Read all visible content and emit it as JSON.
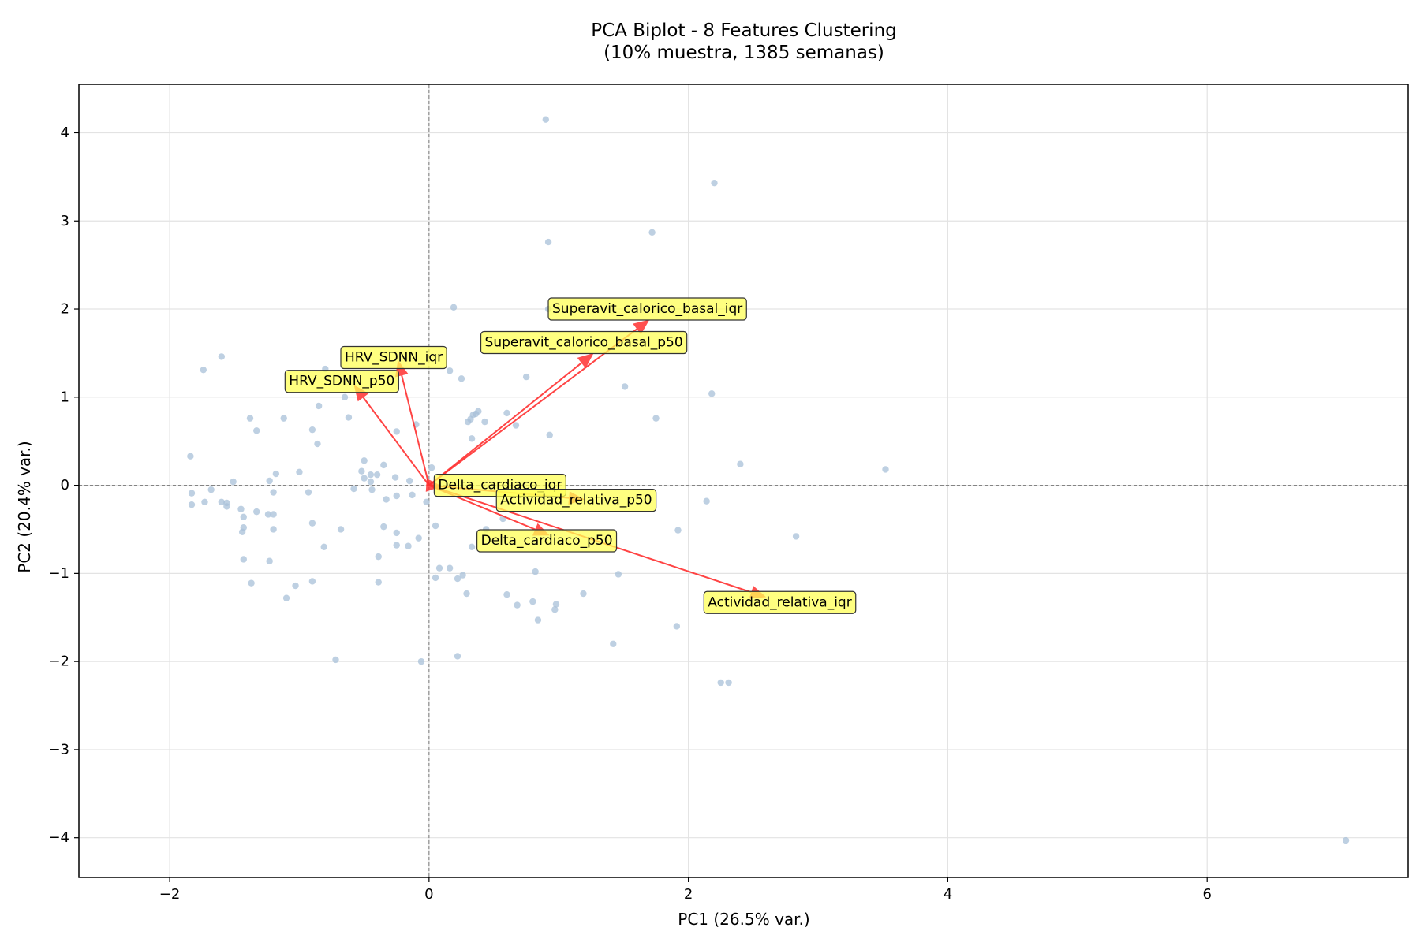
{
  "chart_data": {
    "type": "scatter",
    "title": "PCA Biplot - 8 Features Clustering",
    "subtitle": "(10% muestra, 1385 semanas)",
    "xlabel": "PC1 (26.5% var.)",
    "ylabel": "PC2 (20.4% var.)",
    "xlim": [
      -2.7,
      7.55
    ],
    "ylim": [
      -4.45,
      4.55
    ],
    "x_ticks": [
      -2,
      0,
      2,
      4,
      6
    ],
    "y_ticks": [
      -4,
      -3,
      -2,
      -1,
      0,
      1,
      2,
      3,
      4
    ],
    "x_tick_labels": [
      "−2",
      "0",
      "2",
      "4",
      "6"
    ],
    "y_tick_labels": [
      "−4",
      "−3",
      "−2",
      "−1",
      "0",
      "1",
      "2",
      "3",
      "4"
    ],
    "grid": true,
    "reference_lines": {
      "x": 0,
      "y": 0,
      "style": "dashed"
    },
    "point_color": "#a8c0d8",
    "arrow_color": "#ff3030",
    "label_bg_color": "#ffff55",
    "points": [
      [
        0.9,
        4.15
      ],
      [
        2.2,
        3.43
      ],
      [
        0.92,
        2.76
      ],
      [
        1.72,
        2.87
      ],
      [
        0.19,
        2.02
      ],
      [
        0.92,
        2.0
      ],
      [
        0.16,
        1.3
      ],
      [
        0.25,
        1.21
      ],
      [
        1.51,
        1.12
      ],
      [
        0.75,
        1.23
      ],
      [
        2.18,
        1.04
      ],
      [
        -1.74,
        1.31
      ],
      [
        -1.6,
        1.46
      ],
      [
        -0.8,
        1.32
      ],
      [
        -0.65,
        1.0
      ],
      [
        -0.85,
        0.9
      ],
      [
        -0.62,
        0.77
      ],
      [
        -1.38,
        0.76
      ],
      [
        -1.12,
        0.76
      ],
      [
        -1.33,
        0.62
      ],
      [
        -0.9,
        0.63
      ],
      [
        -0.86,
        0.47
      ],
      [
        -0.25,
        0.61
      ],
      [
        -0.1,
        0.69
      ],
      [
        0.3,
        0.72
      ],
      [
        0.32,
        0.75
      ],
      [
        0.34,
        0.8
      ],
      [
        0.36,
        0.81
      ],
      [
        0.38,
        0.84
      ],
      [
        0.43,
        0.72
      ],
      [
        0.6,
        0.82
      ],
      [
        0.67,
        0.68
      ],
      [
        0.93,
        0.57
      ],
      [
        1.75,
        0.76
      ],
      [
        0.33,
        0.53
      ],
      [
        2.4,
        0.24
      ],
      [
        3.52,
        0.18
      ],
      [
        -1.84,
        0.33
      ],
      [
        -1.0,
        0.15
      ],
      [
        -1.18,
        0.13
      ],
      [
        -0.5,
        0.28
      ],
      [
        -0.52,
        0.16
      ],
      [
        -0.35,
        0.23
      ],
      [
        -0.45,
        0.12
      ],
      [
        -0.4,
        0.12
      ],
      [
        -0.5,
        0.08
      ],
      [
        -0.45,
        0.04
      ],
      [
        -0.26,
        0.09
      ],
      [
        -0.15,
        0.05
      ],
      [
        0.02,
        0.2
      ],
      [
        -1.51,
        0.04
      ],
      [
        -1.23,
        0.05
      ],
      [
        -1.2,
        -0.08
      ],
      [
        -1.68,
        -0.05
      ],
      [
        -1.83,
        -0.09
      ],
      [
        -1.83,
        -0.22
      ],
      [
        -1.73,
        -0.19
      ],
      [
        -1.6,
        -0.19
      ],
      [
        -1.56,
        -0.2
      ],
      [
        -1.56,
        -0.24
      ],
      [
        -1.45,
        -0.27
      ],
      [
        -1.43,
        -0.36
      ],
      [
        -1.33,
        -0.3
      ],
      [
        -1.24,
        -0.33
      ],
      [
        -1.2,
        -0.33
      ],
      [
        -1.2,
        -0.5
      ],
      [
        -1.43,
        -0.48
      ],
      [
        -1.44,
        -0.53
      ],
      [
        -0.93,
        -0.08
      ],
      [
        -0.9,
        -0.43
      ],
      [
        -0.68,
        -0.5
      ],
      [
        -0.44,
        -0.05
      ],
      [
        -0.58,
        -0.04
      ],
      [
        -0.33,
        -0.16
      ],
      [
        -0.25,
        -0.12
      ],
      [
        -0.13,
        -0.11
      ],
      [
        -0.02,
        -0.19
      ],
      [
        -0.35,
        -0.47
      ],
      [
        -0.25,
        -0.54
      ],
      [
        -0.16,
        -0.69
      ],
      [
        -0.25,
        -0.68
      ],
      [
        -0.39,
        -0.81
      ],
      [
        -0.08,
        -0.6
      ],
      [
        0.05,
        -0.46
      ],
      [
        -0.81,
        -0.7
      ],
      [
        -1.43,
        -0.84
      ],
      [
        -1.23,
        -0.86
      ],
      [
        -1.37,
        -1.11
      ],
      [
        -1.1,
        -1.28
      ],
      [
        -0.9,
        -1.09
      ],
      [
        -1.03,
        -1.14
      ],
      [
        -0.39,
        -1.1
      ],
      [
        0.08,
        -0.94
      ],
      [
        0.16,
        -0.94
      ],
      [
        0.05,
        -1.05
      ],
      [
        0.22,
        -1.06
      ],
      [
        0.26,
        -1.02
      ],
      [
        0.29,
        -1.23
      ],
      [
        0.33,
        -0.7
      ],
      [
        0.44,
        -0.5
      ],
      [
        0.57,
        -0.38
      ],
      [
        0.6,
        -1.24
      ],
      [
        0.68,
        -1.36
      ],
      [
        0.8,
        -1.32
      ],
      [
        0.82,
        -0.98
      ],
      [
        0.84,
        -1.53
      ],
      [
        0.97,
        -1.41
      ],
      [
        0.98,
        -1.35
      ],
      [
        1.19,
        -1.23
      ],
      [
        1.46,
        -1.01
      ],
      [
        1.42,
        -1.8
      ],
      [
        1.91,
        -1.6
      ],
      [
        1.92,
        -0.51
      ],
      [
        2.14,
        -0.18
      ],
      [
        2.83,
        -0.58
      ],
      [
        2.25,
        -2.24
      ],
      [
        2.31,
        -2.24
      ],
      [
        -0.72,
        -1.98
      ],
      [
        -0.06,
        -2.0
      ],
      [
        0.22,
        -1.94
      ],
      [
        7.07,
        -4.03
      ]
    ],
    "loadings": [
      {
        "name": "Superavit_calorico_basal_iqr",
        "x": 1.7,
        "y": 1.88
      },
      {
        "name": "Superavit_calorico_basal_p50",
        "x": 1.27,
        "y": 1.5
      },
      {
        "name": "HRV_SDNN_iqr",
        "x": -0.24,
        "y": 1.42
      },
      {
        "name": "HRV_SDNN_p50",
        "x": -0.58,
        "y": 1.14
      },
      {
        "name": "Delta_cardiaco_iqr",
        "x": 0.1,
        "y": -0.01
      },
      {
        "name": "Actividad_relativa_p50",
        "x": 1.2,
        "y": -0.16
      },
      {
        "name": "Delta_cardiaco_p50",
        "x": 0.93,
        "y": -0.57
      },
      {
        "name": "Actividad_relativa_iqr",
        "x": 2.6,
        "y": -1.27
      }
    ],
    "loading_label_positions": [
      {
        "x": 0.95,
        "y": 2.0
      },
      {
        "x": 0.43,
        "y": 1.62
      },
      {
        "x": -0.65,
        "y": 1.45
      },
      {
        "x": -1.08,
        "y": 1.18
      },
      {
        "x": 0.07,
        "y": 0.0
      },
      {
        "x": 0.55,
        "y": -0.17
      },
      {
        "x": 0.4,
        "y": -0.63
      },
      {
        "x": 2.15,
        "y": -1.33
      }
    ]
  }
}
